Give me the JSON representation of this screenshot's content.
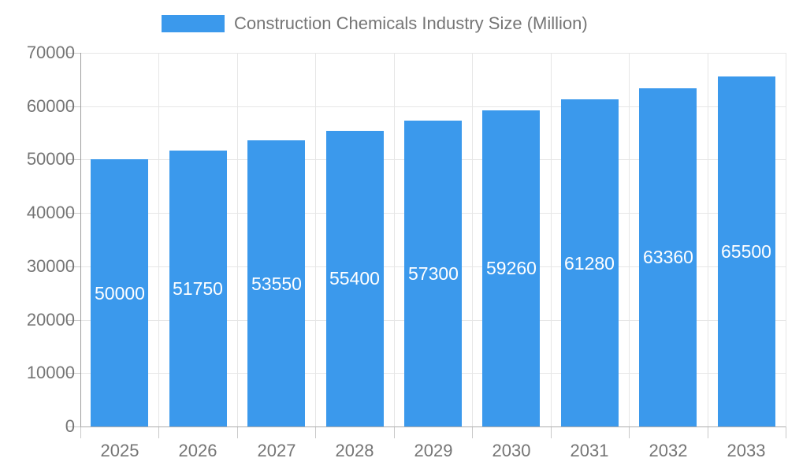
{
  "chart_data": {
    "type": "bar",
    "title": "Construction Chemicals Industry Size (Million)",
    "legend": {
      "label": "Construction Chemicals Industry Size (Million)",
      "position": "top"
    },
    "categories": [
      "2025",
      "2026",
      "2027",
      "2028",
      "2029",
      "2030",
      "2031",
      "2032",
      "2033"
    ],
    "series": [
      {
        "name": "Construction Chemicals Industry Size (Million)",
        "values": [
          50000,
          51750,
          53550,
          55400,
          57300,
          59260,
          61280,
          63360,
          65500
        ]
      }
    ],
    "bar_labels": [
      "50000",
      "51750",
      "53550",
      "55400",
      "57300",
      "59260",
      "61280",
      "63360",
      "65500"
    ],
    "xlabel": "",
    "ylabel": "",
    "ylim": [
      0,
      70000
    ],
    "yticks": [
      0,
      10000,
      20000,
      30000,
      40000,
      50000,
      60000,
      70000
    ],
    "ytick_labels": [
      "0",
      "10000",
      "20000",
      "30000",
      "40000",
      "50000",
      "60000",
      "70000"
    ],
    "grid": true,
    "legend_position": "top"
  },
  "colors": {
    "bar": "#3B99EC",
    "legend_text": "#757575",
    "axis_text": "#757575",
    "bar_label_text": "#FFFFFF",
    "gridline": "#E6E6E6",
    "y_axis_line": "#9E9E9E",
    "x_axis_line": "#ADADAD",
    "tick": "#C9C9C9",
    "background": "#FFFFFF"
  }
}
